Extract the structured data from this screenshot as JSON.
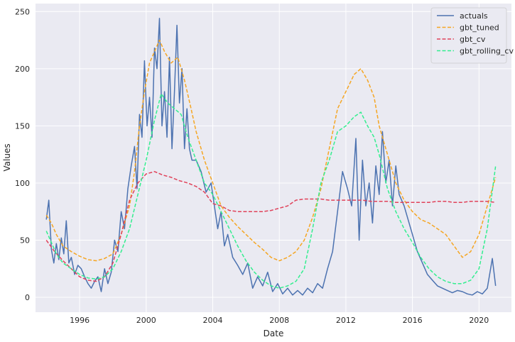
{
  "chart_data": {
    "type": "line",
    "title": "",
    "xlabel": "Date",
    "ylabel": "Values",
    "xlim": [
      1993.35,
      2021.95
    ],
    "ylim": [
      -13,
      257
    ],
    "x_ticks": [
      1996,
      2000,
      2004,
      2008,
      2012,
      2016,
      2020
    ],
    "y_ticks": [
      0,
      50,
      100,
      150,
      200,
      250
    ],
    "grid": true,
    "legend_position": "top-right",
    "series": [
      {
        "name": "actuals",
        "color": "#4c72b0",
        "dash": "solid",
        "points": [
          [
            1994.0,
            68
          ],
          [
            1994.15,
            85
          ],
          [
            1994.3,
            42
          ],
          [
            1994.45,
            30
          ],
          [
            1994.6,
            47
          ],
          [
            1994.75,
            33
          ],
          [
            1994.9,
            52
          ],
          [
            1995.05,
            38
          ],
          [
            1995.2,
            67
          ],
          [
            1995.35,
            30
          ],
          [
            1995.5,
            35
          ],
          [
            1995.7,
            20
          ],
          [
            1995.9,
            28
          ],
          [
            1996.1,
            25
          ],
          [
            1996.3,
            18
          ],
          [
            1996.5,
            12
          ],
          [
            1996.7,
            8
          ],
          [
            1996.9,
            14
          ],
          [
            1997.1,
            18
          ],
          [
            1997.3,
            5
          ],
          [
            1997.5,
            25
          ],
          [
            1997.7,
            12
          ],
          [
            1997.9,
            22
          ],
          [
            1998.1,
            50
          ],
          [
            1998.3,
            40
          ],
          [
            1998.5,
            75
          ],
          [
            1998.7,
            60
          ],
          [
            1998.9,
            95
          ],
          [
            1999.1,
            115
          ],
          [
            1999.3,
            132
          ],
          [
            1999.45,
            95
          ],
          [
            1999.6,
            160
          ],
          [
            1999.75,
            140
          ],
          [
            1999.9,
            207
          ],
          [
            2000.05,
            150
          ],
          [
            2000.2,
            175
          ],
          [
            2000.35,
            140
          ],
          [
            2000.5,
            218
          ],
          [
            2000.65,
            200
          ],
          [
            2000.8,
            244
          ],
          [
            2000.95,
            150
          ],
          [
            2001.1,
            180
          ],
          [
            2001.25,
            140
          ],
          [
            2001.4,
            210
          ],
          [
            2001.55,
            130
          ],
          [
            2001.7,
            180
          ],
          [
            2001.85,
            238
          ],
          [
            2002.0,
            170
          ],
          [
            2002.15,
            200
          ],
          [
            2002.3,
            130
          ],
          [
            2002.45,
            165
          ],
          [
            2002.6,
            130
          ],
          [
            2002.75,
            120
          ],
          [
            2003.0,
            120
          ],
          [
            2003.3,
            110
          ],
          [
            2003.6,
            92
          ],
          [
            2003.9,
            100
          ],
          [
            2004.1,
            80
          ],
          [
            2004.3,
            60
          ],
          [
            2004.5,
            75
          ],
          [
            2004.7,
            45
          ],
          [
            2004.9,
            55
          ],
          [
            2005.2,
            35
          ],
          [
            2005.5,
            28
          ],
          [
            2005.8,
            20
          ],
          [
            2006.1,
            30
          ],
          [
            2006.4,
            8
          ],
          [
            2006.7,
            18
          ],
          [
            2007.0,
            10
          ],
          [
            2007.3,
            22
          ],
          [
            2007.6,
            5
          ],
          [
            2007.9,
            12
          ],
          [
            2008.2,
            3
          ],
          [
            2008.5,
            8
          ],
          [
            2008.8,
            2
          ],
          [
            2009.1,
            6
          ],
          [
            2009.4,
            2
          ],
          [
            2009.7,
            8
          ],
          [
            2010.0,
            4
          ],
          [
            2010.3,
            12
          ],
          [
            2010.6,
            8
          ],
          [
            2010.9,
            25
          ],
          [
            2011.2,
            40
          ],
          [
            2011.5,
            75
          ],
          [
            2011.8,
            110
          ],
          [
            2012.1,
            95
          ],
          [
            2012.35,
            80
          ],
          [
            2012.6,
            139
          ],
          [
            2012.8,
            50
          ],
          [
            2013.0,
            120
          ],
          [
            2013.2,
            80
          ],
          [
            2013.4,
            100
          ],
          [
            2013.6,
            65
          ],
          [
            2013.8,
            115
          ],
          [
            2014.0,
            90
          ],
          [
            2014.2,
            145
          ],
          [
            2014.4,
            100
          ],
          [
            2014.6,
            120
          ],
          [
            2014.8,
            80
          ],
          [
            2015.0,
            115
          ],
          [
            2015.2,
            90
          ],
          [
            2015.5,
            80
          ],
          [
            2015.8,
            65
          ],
          [
            2016.0,
            55
          ],
          [
            2016.3,
            40
          ],
          [
            2016.6,
            30
          ],
          [
            2016.9,
            20
          ],
          [
            2017.2,
            15
          ],
          [
            2017.5,
            10
          ],
          [
            2017.8,
            8
          ],
          [
            2018.1,
            6
          ],
          [
            2018.4,
            4
          ],
          [
            2018.7,
            6
          ],
          [
            2019.0,
            5
          ],
          [
            2019.3,
            3
          ],
          [
            2019.6,
            2
          ],
          [
            2019.9,
            5
          ],
          [
            2020.2,
            3
          ],
          [
            2020.5,
            8
          ],
          [
            2020.8,
            34
          ],
          [
            2021.0,
            10
          ]
        ]
      },
      {
        "name": "gbt_tuned",
        "color": "#f5a623",
        "dash": "dashed",
        "points": [
          [
            1994.0,
            72
          ],
          [
            1994.3,
            65
          ],
          [
            1994.6,
            55
          ],
          [
            1995.0,
            45
          ],
          [
            1995.5,
            40
          ],
          [
            1996.0,
            36
          ],
          [
            1996.5,
            33
          ],
          [
            1997.0,
            32
          ],
          [
            1997.5,
            34
          ],
          [
            1998.0,
            38
          ],
          [
            1998.5,
            55
          ],
          [
            1999.0,
            80
          ],
          [
            1999.3,
            110
          ],
          [
            1999.6,
            150
          ],
          [
            1999.9,
            180
          ],
          [
            2000.2,
            205
          ],
          [
            2000.5,
            215
          ],
          [
            2000.8,
            225
          ],
          [
            2001.1,
            215
          ],
          [
            2001.5,
            205
          ],
          [
            2001.9,
            210
          ],
          [
            2002.3,
            190
          ],
          [
            2002.7,
            165
          ],
          [
            2003.0,
            145
          ],
          [
            2003.5,
            120
          ],
          [
            2004.0,
            100
          ],
          [
            2004.5,
            80
          ],
          [
            2005.0,
            70
          ],
          [
            2005.5,
            62
          ],
          [
            2006.0,
            55
          ],
          [
            2006.5,
            48
          ],
          [
            2007.0,
            42
          ],
          [
            2007.5,
            35
          ],
          [
            2008.0,
            32
          ],
          [
            2008.5,
            35
          ],
          [
            2009.0,
            40
          ],
          [
            2009.5,
            50
          ],
          [
            2010.0,
            70
          ],
          [
            2010.5,
            95
          ],
          [
            2011.0,
            130
          ],
          [
            2011.5,
            165
          ],
          [
            2012.0,
            180
          ],
          [
            2012.5,
            195
          ],
          [
            2012.9,
            200
          ],
          [
            2013.3,
            190
          ],
          [
            2013.7,
            175
          ],
          [
            2014.0,
            150
          ],
          [
            2014.5,
            125
          ],
          [
            2015.0,
            100
          ],
          [
            2015.5,
            85
          ],
          [
            2016.0,
            75
          ],
          [
            2016.5,
            68
          ],
          [
            2017.0,
            65
          ],
          [
            2017.5,
            60
          ],
          [
            2018.0,
            55
          ],
          [
            2018.5,
            45
          ],
          [
            2019.0,
            35
          ],
          [
            2019.5,
            40
          ],
          [
            2020.0,
            55
          ],
          [
            2020.5,
            80
          ],
          [
            2021.0,
            105
          ]
        ]
      },
      {
        "name": "gbt_cv",
        "color": "#e0425a",
        "dash": "dashed",
        "points": [
          [
            1994.0,
            50
          ],
          [
            1994.5,
            40
          ],
          [
            1995.0,
            32
          ],
          [
            1995.5,
            25
          ],
          [
            1996.0,
            18
          ],
          [
            1996.5,
            15
          ],
          [
            1997.0,
            14
          ],
          [
            1997.5,
            18
          ],
          [
            1998.0,
            30
          ],
          [
            1998.5,
            55
          ],
          [
            1999.0,
            85
          ],
          [
            1999.5,
            100
          ],
          [
            2000.0,
            108
          ],
          [
            2000.5,
            110
          ],
          [
            2001.0,
            107
          ],
          [
            2001.5,
            105
          ],
          [
            2002.0,
            102
          ],
          [
            2002.5,
            100
          ],
          [
            2003.0,
            97
          ],
          [
            2003.5,
            92
          ],
          [
            2004.0,
            82
          ],
          [
            2004.5,
            80
          ],
          [
            2005.0,
            76
          ],
          [
            2005.5,
            75
          ],
          [
            2006.0,
            75
          ],
          [
            2006.5,
            75
          ],
          [
            2007.0,
            75
          ],
          [
            2007.5,
            76
          ],
          [
            2008.0,
            78
          ],
          [
            2008.5,
            80
          ],
          [
            2009.0,
            85
          ],
          [
            2009.5,
            86
          ],
          [
            2010.0,
            86
          ],
          [
            2010.5,
            86
          ],
          [
            2011.0,
            85
          ],
          [
            2011.5,
            85
          ],
          [
            2012.0,
            85
          ],
          [
            2012.5,
            85
          ],
          [
            2013.0,
            85
          ],
          [
            2013.5,
            84
          ],
          [
            2014.0,
            84
          ],
          [
            2014.5,
            84
          ],
          [
            2015.0,
            83
          ],
          [
            2015.5,
            83
          ],
          [
            2016.0,
            83
          ],
          [
            2016.5,
            83
          ],
          [
            2017.0,
            83
          ],
          [
            2017.5,
            84
          ],
          [
            2018.0,
            84
          ],
          [
            2018.5,
            83
          ],
          [
            2019.0,
            83
          ],
          [
            2019.5,
            84
          ],
          [
            2020.0,
            84
          ],
          [
            2020.5,
            84
          ],
          [
            2021.0,
            83
          ]
        ]
      },
      {
        "name": "gbt_rolling_cv",
        "color": "#33ee8f",
        "dash": "dashed",
        "points": [
          [
            1994.0,
            58
          ],
          [
            1994.3,
            48
          ],
          [
            1994.6,
            38
          ],
          [
            1995.0,
            30
          ],
          [
            1995.5,
            25
          ],
          [
            1996.0,
            20
          ],
          [
            1996.5,
            17
          ],
          [
            1997.0,
            16
          ],
          [
            1997.5,
            18
          ],
          [
            1998.0,
            25
          ],
          [
            1998.5,
            40
          ],
          [
            1999.0,
            60
          ],
          [
            1999.5,
            90
          ],
          [
            2000.0,
            120
          ],
          [
            2000.5,
            155
          ],
          [
            2000.9,
            178
          ],
          [
            2001.3,
            170
          ],
          [
            2001.7,
            165
          ],
          [
            2002.1,
            160
          ],
          [
            2002.5,
            140
          ],
          [
            2003.0,
            120
          ],
          [
            2003.5,
            100
          ],
          [
            2004.0,
            90
          ],
          [
            2004.5,
            75
          ],
          [
            2005.0,
            60
          ],
          [
            2005.5,
            45
          ],
          [
            2006.0,
            32
          ],
          [
            2006.5,
            22
          ],
          [
            2007.0,
            15
          ],
          [
            2007.5,
            10
          ],
          [
            2008.0,
            8
          ],
          [
            2008.5,
            10
          ],
          [
            2009.0,
            14
          ],
          [
            2009.5,
            25
          ],
          [
            2010.0,
            60
          ],
          [
            2010.5,
            100
          ],
          [
            2011.0,
            120
          ],
          [
            2011.5,
            145
          ],
          [
            2012.0,
            150
          ],
          [
            2012.5,
            158
          ],
          [
            2012.9,
            162
          ],
          [
            2013.3,
            150
          ],
          [
            2013.7,
            140
          ],
          [
            2014.0,
            125
          ],
          [
            2014.5,
            95
          ],
          [
            2015.0,
            75
          ],
          [
            2015.5,
            60
          ],
          [
            2016.0,
            48
          ],
          [
            2016.5,
            35
          ],
          [
            2017.0,
            25
          ],
          [
            2017.5,
            18
          ],
          [
            2018.0,
            14
          ],
          [
            2018.5,
            12
          ],
          [
            2019.0,
            12
          ],
          [
            2019.5,
            15
          ],
          [
            2020.0,
            25
          ],
          [
            2020.5,
            60
          ],
          [
            2021.0,
            115
          ]
        ]
      }
    ]
  }
}
